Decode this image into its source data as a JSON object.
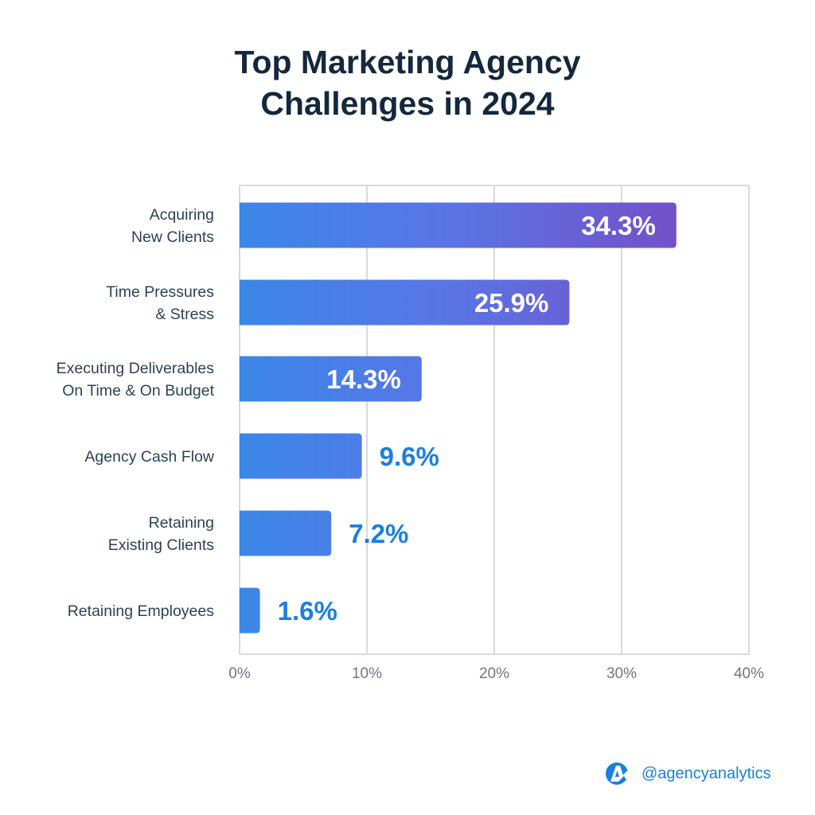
{
  "chart_data": {
    "type": "bar",
    "orientation": "horizontal",
    "title_lines": [
      "Top Marketing Agency",
      "Challenges in 2024"
    ],
    "categories": [
      [
        "Acquiring",
        "New Clients"
      ],
      [
        "Time Pressures",
        "& Stress"
      ],
      [
        "Executing Deliverables",
        "On Time & On Budget"
      ],
      [
        "Agency Cash Flow"
      ],
      [
        "Retaining",
        "Existing Clients"
      ],
      [
        "Retaining Employees"
      ]
    ],
    "values": [
      34.3,
      25.9,
      14.3,
      9.6,
      7.2,
      1.6
    ],
    "value_labels": [
      "34.3%",
      "25.9%",
      "14.3%",
      "9.6%",
      "7.2%",
      "1.6%"
    ],
    "xlim": [
      0,
      40
    ],
    "xticks": [
      0,
      10,
      20,
      30,
      40
    ],
    "xtick_labels": [
      "0%",
      "10%",
      "20%",
      "30%",
      "40%"
    ],
    "xlabel": "",
    "ylabel": "",
    "grid": true,
    "colors": {
      "gradient_start": "#3b87e8",
      "gradient_end": "#7350c8",
      "outside_label": "#1a7fe0",
      "category_text": "#2e4256",
      "title": "#14283d",
      "grid": "#d9d9d9"
    }
  },
  "brand": {
    "handle": "@agencyanalytics",
    "logo_icon": "agencyanalytics-logo"
  }
}
